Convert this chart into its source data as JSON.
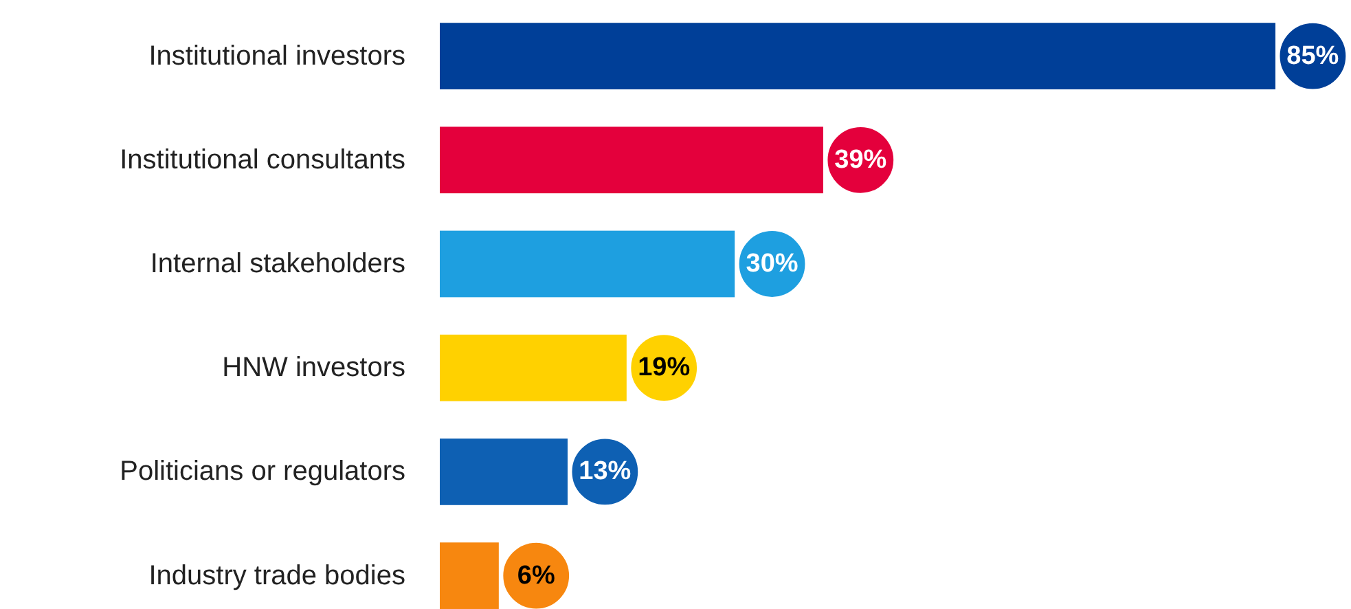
{
  "chart_data": {
    "type": "bar",
    "orientation": "horizontal",
    "categories": [
      "Institutional investors",
      "Institutional consultants",
      "Internal stakeholders",
      "HNW investors",
      "Politicians or regulators",
      "Industry trade bodies"
    ],
    "values": [
      85,
      39,
      30,
      19,
      13,
      6
    ],
    "colors": [
      "#003f98",
      "#e4003c",
      "#1e9fe0",
      "#ffd100",
      "#0e60b3",
      "#f7870f"
    ],
    "value_labels": [
      "85%",
      "39%",
      "30%",
      "19%",
      "13%",
      "6%"
    ]
  }
}
